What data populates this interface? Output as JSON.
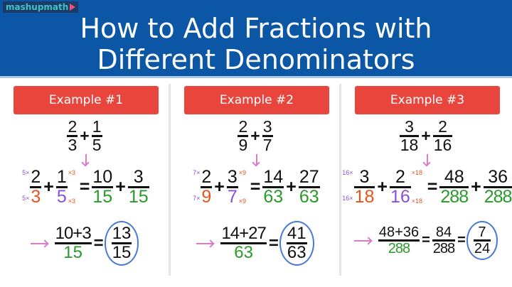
{
  "header": {
    "logo": "mashupmath",
    "title_line1": "How to Add Fractions with",
    "title_line2": "Different Denominators"
  },
  "colors": {
    "header": "#0b57a6",
    "button": "#e8453c",
    "orange": "#e8541e",
    "purple": "#8a4fe0",
    "green": "#2a9a2a",
    "arrow": "#d97cc5",
    "circle": "#4a78d6"
  },
  "examples": [
    {
      "label": "Example #1",
      "problem": [
        {
          "t": "frac",
          "n": "2",
          "d": "3"
        },
        {
          "t": "op",
          "v": "+"
        },
        {
          "t": "frac",
          "n": "1",
          "d": "5"
        }
      ],
      "step": [
        {
          "t": "frac",
          "n": "2",
          "d": "3",
          "dc": "orange",
          "nl": "5×",
          "dl": "5×",
          "lc": "purple"
        },
        {
          "t": "op",
          "v": "+"
        },
        {
          "t": "frac",
          "n": "1",
          "d": "5",
          "dc": "purple",
          "nr": "×3",
          "dr": "×3",
          "rc": "orange"
        },
        {
          "t": "op",
          "v": "="
        },
        {
          "t": "frac",
          "n": "10",
          "d": "15",
          "dc": "green"
        },
        {
          "t": "op",
          "v": "+"
        },
        {
          "t": "frac",
          "n": "3",
          "d": "15",
          "dc": "green"
        }
      ],
      "result": [
        {
          "t": "frac",
          "n": "10+3",
          "d": "15",
          "dc": "green"
        },
        {
          "t": "op",
          "v": "="
        },
        {
          "t": "frac",
          "n": "13",
          "d": "15",
          "circle": true
        }
      ]
    },
    {
      "label": "Example #2",
      "problem": [
        {
          "t": "frac",
          "n": "2",
          "d": "9"
        },
        {
          "t": "op",
          "v": "+"
        },
        {
          "t": "frac",
          "n": "3",
          "d": "7"
        }
      ],
      "step": [
        {
          "t": "frac",
          "n": "2",
          "d": "9",
          "dc": "orange",
          "nl": "7×",
          "dl": "7×",
          "lc": "purple"
        },
        {
          "t": "op",
          "v": "+"
        },
        {
          "t": "frac",
          "n": "3",
          "d": "7",
          "dc": "purple",
          "nr": "×9",
          "dr": "×9",
          "rc": "orange"
        },
        {
          "t": "op",
          "v": "="
        },
        {
          "t": "frac",
          "n": "14",
          "d": "63",
          "dc": "green"
        },
        {
          "t": "op",
          "v": "+"
        },
        {
          "t": "frac",
          "n": "27",
          "d": "63",
          "dc": "green"
        }
      ],
      "result": [
        {
          "t": "frac",
          "n": "14+27",
          "d": "63",
          "dc": "green"
        },
        {
          "t": "op",
          "v": "="
        },
        {
          "t": "frac",
          "n": "41",
          "d": "63",
          "circle": true
        }
      ]
    },
    {
      "label": "Example #3",
      "problem": [
        {
          "t": "frac",
          "n": "3",
          "d": "18"
        },
        {
          "t": "op",
          "v": "+"
        },
        {
          "t": "frac",
          "n": "2",
          "d": "16"
        }
      ],
      "step": [
        {
          "t": "frac",
          "n": "3",
          "d": "18",
          "dc": "orange",
          "nl": "16×",
          "dl": "16×",
          "lc": "purple"
        },
        {
          "t": "op",
          "v": "+"
        },
        {
          "t": "frac",
          "n": "2",
          "d": "16",
          "dc": "purple",
          "nr": "×18",
          "dr": "×18",
          "rc": "orange"
        },
        {
          "t": "op",
          "v": "="
        },
        {
          "t": "frac",
          "n": "48",
          "d": "288",
          "dc": "green"
        },
        {
          "t": "op",
          "v": "+"
        },
        {
          "t": "frac",
          "n": "36",
          "d": "288",
          "dc": "green"
        }
      ],
      "result": [
        {
          "t": "frac",
          "n": "48+36",
          "d": "288",
          "dc": "green"
        },
        {
          "t": "op",
          "v": "="
        },
        {
          "t": "frac",
          "n": "84",
          "d": "288"
        },
        {
          "t": "op",
          "v": "="
        },
        {
          "t": "frac",
          "n": "7",
          "d": "24",
          "circle": true
        }
      ]
    }
  ]
}
